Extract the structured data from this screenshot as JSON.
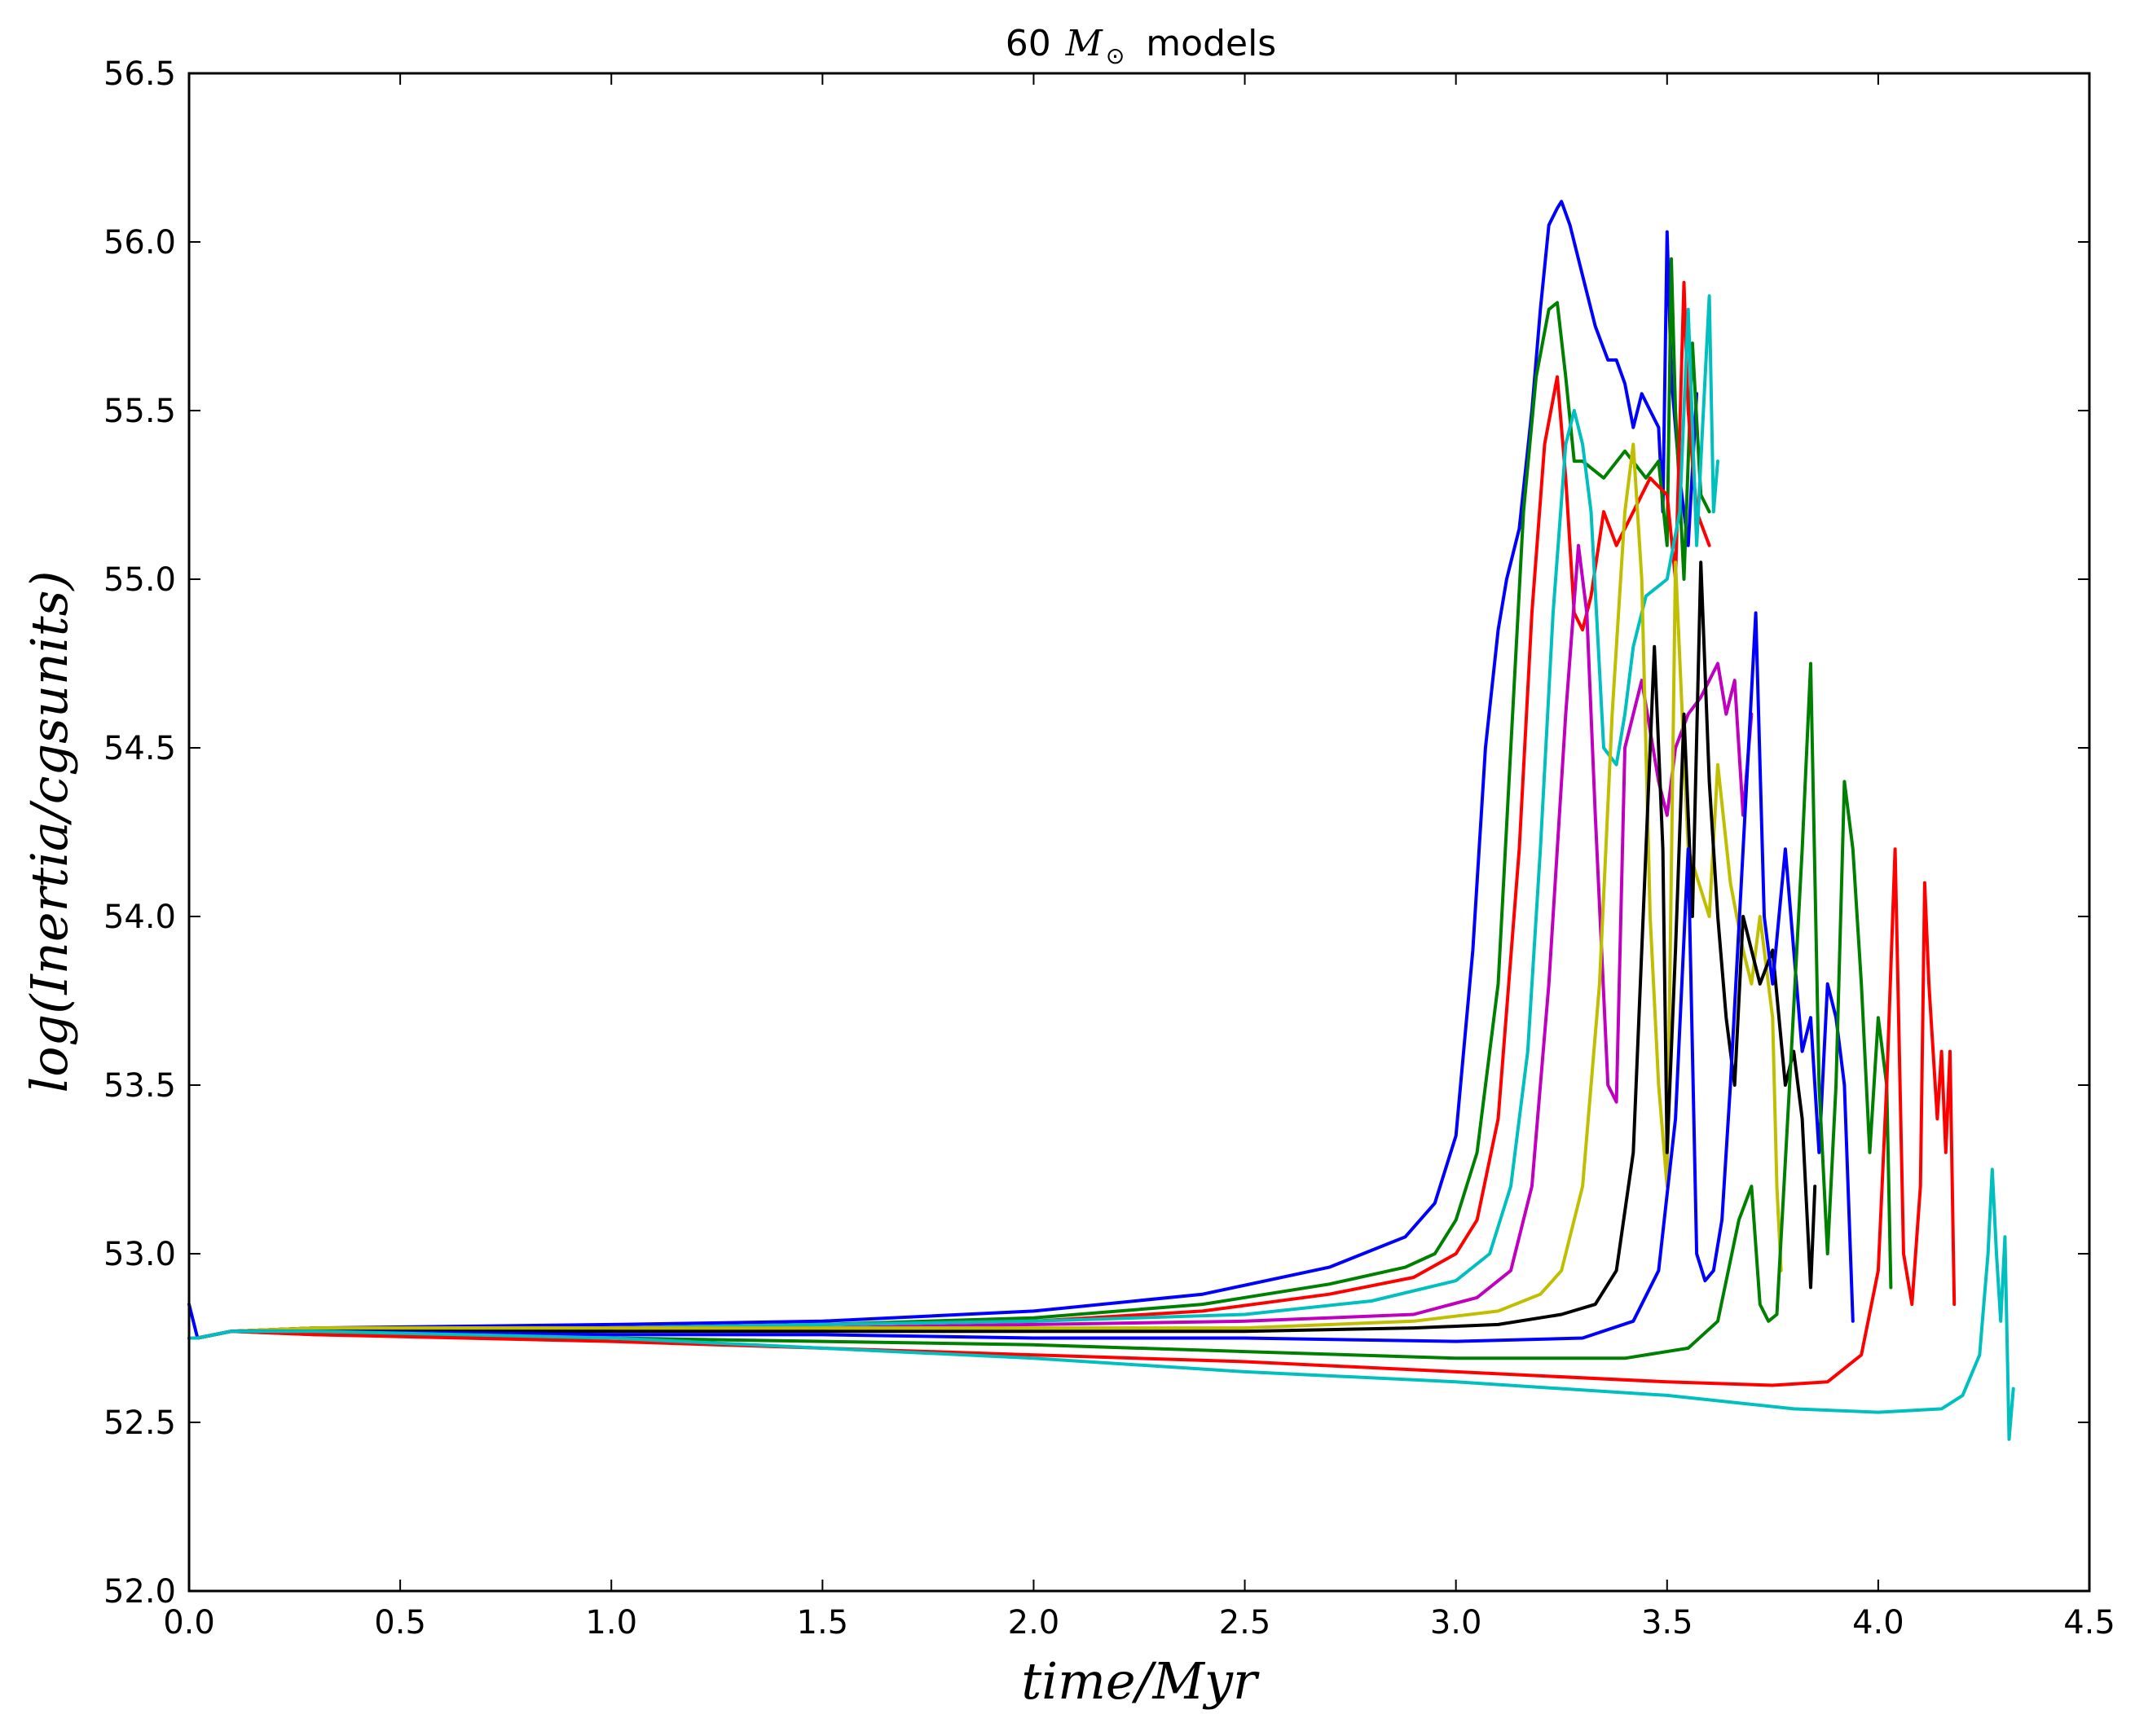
{
  "chart_data": {
    "type": "line",
    "title": "60 M⊙  models",
    "title_parts": {
      "prefix": "60",
      "mass_symbol": "M",
      "sun_symbol": "⊙",
      "suffix": "models"
    },
    "xlabel": "time/Myr",
    "ylabel": "log(Inertia/cgsunits)",
    "xlim": [
      0.0,
      4.5
    ],
    "ylim": [
      52.0,
      56.5
    ],
    "x_ticks": [
      "0.0",
      "0.5",
      "1.0",
      "1.5",
      "2.0",
      "2.5",
      "3.0",
      "3.5",
      "4.0",
      "4.5"
    ],
    "y_ticks": [
      "52.0",
      "52.5",
      "53.0",
      "53.5",
      "54.0",
      "54.5",
      "55.0",
      "55.5",
      "56.0",
      "56.5"
    ],
    "grid": false,
    "legend": "none",
    "series": [
      {
        "color": "#0000ff",
        "x": [
          0.0,
          0.02,
          0.1,
          0.3,
          1.0,
          1.5,
          2.0,
          2.4,
          2.7,
          2.88,
          2.95,
          3.0,
          3.04,
          3.07,
          3.1,
          3.12,
          3.15,
          3.18,
          3.2,
          3.22,
          3.24,
          3.25,
          3.27,
          3.3,
          3.33,
          3.36,
          3.38,
          3.4,
          3.42,
          3.44,
          3.46,
          3.48,
          3.49,
          3.5,
          3.51,
          3.53,
          3.55,
          3.57
        ],
        "y": [
          52.85,
          52.75,
          52.77,
          52.78,
          52.79,
          52.8,
          52.83,
          52.88,
          52.96,
          53.05,
          53.15,
          53.35,
          53.9,
          54.5,
          54.85,
          55.0,
          55.15,
          55.5,
          55.8,
          56.05,
          56.1,
          56.12,
          56.05,
          55.9,
          55.75,
          55.65,
          55.65,
          55.58,
          55.45,
          55.55,
          55.5,
          55.45,
          55.2,
          56.03,
          55.6,
          55.3,
          55.1,
          55.55
        ]
      },
      {
        "color": "#008000",
        "x": [
          0.0,
          0.02,
          0.1,
          0.3,
          1.0,
          1.5,
          2.0,
          2.4,
          2.7,
          2.88,
          2.95,
          3.0,
          3.05,
          3.1,
          3.13,
          3.16,
          3.19,
          3.22,
          3.24,
          3.26,
          3.28,
          3.3,
          3.35,
          3.4,
          3.45,
          3.48,
          3.5,
          3.51,
          3.52,
          3.54,
          3.56,
          3.58,
          3.6
        ],
        "y": [
          52.75,
          52.75,
          52.77,
          52.78,
          52.78,
          52.79,
          52.81,
          52.85,
          52.91,
          52.96,
          53.0,
          53.1,
          53.3,
          53.8,
          54.5,
          55.2,
          55.6,
          55.8,
          55.82,
          55.6,
          55.35,
          55.35,
          55.3,
          55.38,
          55.3,
          55.35,
          55.1,
          55.95,
          55.5,
          55.0,
          55.7,
          55.25,
          55.2
        ]
      },
      {
        "color": "#ff0000",
        "x": [
          0.0,
          0.02,
          0.1,
          0.3,
          1.0,
          1.5,
          2.0,
          2.4,
          2.7,
          2.9,
          3.0,
          3.05,
          3.1,
          3.15,
          3.18,
          3.21,
          3.24,
          3.26,
          3.28,
          3.3,
          3.32,
          3.35,
          3.38,
          3.42,
          3.46,
          3.5,
          3.52,
          3.54,
          3.55,
          3.57,
          3.6
        ],
        "y": [
          52.75,
          52.75,
          52.77,
          52.78,
          52.78,
          52.79,
          52.8,
          52.83,
          52.88,
          52.93,
          53.0,
          53.1,
          53.4,
          54.2,
          54.9,
          55.4,
          55.6,
          55.3,
          54.9,
          54.85,
          54.95,
          55.2,
          55.1,
          55.2,
          55.3,
          55.25,
          55.0,
          55.88,
          55.5,
          55.2,
          55.1
        ]
      },
      {
        "color": "#00bfbf",
        "x": [
          0.0,
          0.02,
          0.1,
          0.3,
          1.0,
          1.5,
          2.0,
          2.5,
          2.8,
          3.0,
          3.08,
          3.13,
          3.17,
          3.2,
          3.23,
          3.26,
          3.28,
          3.3,
          3.32,
          3.35,
          3.38,
          3.4,
          3.42,
          3.45,
          3.5,
          3.53,
          3.55,
          3.57,
          3.58,
          3.6,
          3.61,
          3.62
        ],
        "y": [
          52.75,
          52.75,
          52.77,
          52.78,
          52.78,
          52.79,
          52.8,
          52.82,
          52.86,
          52.92,
          53.0,
          53.2,
          53.6,
          54.2,
          54.9,
          55.4,
          55.5,
          55.4,
          55.2,
          54.5,
          54.45,
          54.6,
          54.8,
          54.95,
          55.0,
          55.2,
          55.8,
          55.1,
          55.35,
          55.84,
          55.2,
          55.35
        ]
      },
      {
        "color": "#bf00bf",
        "x": [
          0.0,
          0.02,
          0.1,
          0.3,
          1.0,
          1.5,
          2.0,
          2.5,
          2.9,
          3.05,
          3.13,
          3.18,
          3.22,
          3.26,
          3.29,
          3.31,
          3.33,
          3.36,
          3.38,
          3.4,
          3.44,
          3.48,
          3.5,
          3.52,
          3.55,
          3.58,
          3.6,
          3.62,
          3.64,
          3.66,
          3.68,
          3.7
        ],
        "y": [
          52.75,
          52.75,
          52.77,
          52.78,
          52.78,
          52.78,
          52.79,
          52.8,
          52.82,
          52.87,
          52.95,
          53.2,
          53.8,
          54.6,
          55.1,
          54.9,
          54.3,
          53.5,
          53.45,
          54.5,
          54.7,
          54.4,
          54.3,
          54.5,
          54.6,
          54.65,
          54.7,
          54.75,
          54.6,
          54.7,
          54.3,
          54.6
        ]
      },
      {
        "color": "#bfbf00",
        "x": [
          0.0,
          0.02,
          0.1,
          0.3,
          1.0,
          1.5,
          2.0,
          2.5,
          2.9,
          3.1,
          3.2,
          3.25,
          3.3,
          3.34,
          3.37,
          3.4,
          3.42,
          3.44,
          3.46,
          3.48,
          3.5,
          3.52,
          3.55,
          3.6,
          3.62,
          3.65,
          3.68,
          3.7,
          3.72,
          3.75,
          3.76,
          3.77
        ],
        "y": [
          52.75,
          52.75,
          52.77,
          52.78,
          52.78,
          52.78,
          52.78,
          52.78,
          52.8,
          52.83,
          52.88,
          52.95,
          53.2,
          53.8,
          54.6,
          55.2,
          55.4,
          55.0,
          54.0,
          53.5,
          53.2,
          55.05,
          54.2,
          54.0,
          54.45,
          54.1,
          53.9,
          53.8,
          54.0,
          53.7,
          53.2,
          52.95
        ]
      },
      {
        "color": "#000000",
        "x": [
          0.0,
          0.02,
          0.1,
          0.3,
          1.0,
          1.5,
          2.0,
          2.5,
          2.9,
          3.1,
          3.25,
          3.33,
          3.38,
          3.42,
          3.45,
          3.47,
          3.49,
          3.5,
          3.52,
          3.54,
          3.56,
          3.58,
          3.6,
          3.62,
          3.64,
          3.66,
          3.68,
          3.7,
          3.72,
          3.75,
          3.78,
          3.8,
          3.82,
          3.84,
          3.85
        ],
        "y": [
          52.75,
          52.75,
          52.77,
          52.77,
          52.77,
          52.77,
          52.77,
          52.77,
          52.78,
          52.79,
          52.82,
          52.85,
          52.95,
          53.3,
          54.2,
          54.8,
          54.2,
          53.3,
          53.9,
          54.6,
          54.0,
          55.05,
          54.4,
          54.0,
          53.7,
          53.5,
          54.0,
          53.9,
          53.8,
          53.9,
          53.5,
          53.6,
          53.4,
          52.9,
          53.2
        ]
      },
      {
        "color": "#0000ff",
        "x": [
          0.0,
          0.02,
          0.1,
          0.3,
          1.0,
          1.5,
          2.0,
          2.5,
          3.0,
          3.3,
          3.42,
          3.48,
          3.52,
          3.55,
          3.57,
          3.59,
          3.61,
          3.63,
          3.65,
          3.68,
          3.71,
          3.73,
          3.75,
          3.78,
          3.8,
          3.82,
          3.84,
          3.86,
          3.88,
          3.9,
          3.92,
          3.94
        ],
        "y": [
          52.75,
          52.75,
          52.77,
          52.77,
          52.76,
          52.76,
          52.75,
          52.75,
          52.74,
          52.75,
          52.8,
          52.95,
          53.4,
          54.2,
          53.0,
          52.92,
          52.95,
          53.1,
          53.5,
          54.2,
          54.9,
          54.0,
          53.8,
          54.2,
          53.9,
          53.6,
          53.7,
          53.3,
          53.8,
          53.7,
          53.5,
          52.8
        ]
      },
      {
        "color": "#008000",
        "x": [
          0.0,
          0.02,
          0.1,
          0.3,
          1.0,
          1.5,
          2.0,
          2.5,
          3.0,
          3.4,
          3.55,
          3.62,
          3.67,
          3.7,
          3.72,
          3.74,
          3.76,
          3.79,
          3.82,
          3.84,
          3.86,
          3.88,
          3.9,
          3.92,
          3.94,
          3.96,
          3.98,
          4.0,
          4.02,
          4.03
        ],
        "y": [
          52.75,
          52.75,
          52.77,
          52.76,
          52.75,
          52.74,
          52.73,
          52.71,
          52.69,
          52.69,
          52.72,
          52.8,
          53.1,
          53.2,
          52.85,
          52.8,
          52.82,
          53.5,
          54.2,
          54.75,
          53.5,
          53.0,
          53.5,
          54.4,
          54.2,
          53.8,
          53.3,
          53.7,
          53.5,
          52.9
        ]
      },
      {
        "color": "#ff0000",
        "x": [
          0.0,
          0.02,
          0.1,
          0.3,
          1.0,
          1.5,
          2.0,
          2.5,
          3.0,
          3.5,
          3.75,
          3.88,
          3.96,
          4.0,
          4.02,
          4.04,
          4.06,
          4.08,
          4.1,
          4.11,
          4.12,
          4.14,
          4.15,
          4.16,
          4.17,
          4.18
        ],
        "y": [
          52.75,
          52.75,
          52.77,
          52.76,
          52.74,
          52.72,
          52.7,
          52.68,
          52.65,
          52.62,
          52.61,
          52.62,
          52.7,
          52.95,
          53.5,
          54.2,
          53.0,
          52.85,
          53.2,
          54.1,
          53.8,
          53.4,
          53.6,
          53.3,
          53.6,
          52.85
        ]
      },
      {
        "color": "#00bfbf",
        "x": [
          0.0,
          0.02,
          0.1,
          0.3,
          1.0,
          1.5,
          2.0,
          2.5,
          3.0,
          3.5,
          3.8,
          4.0,
          4.15,
          4.2,
          4.24,
          4.26,
          4.27,
          4.28,
          4.29,
          4.3,
          4.31,
          4.32
        ],
        "y": [
          52.75,
          52.75,
          52.77,
          52.77,
          52.75,
          52.72,
          52.69,
          52.65,
          52.62,
          52.58,
          52.54,
          52.53,
          52.54,
          52.58,
          52.7,
          53.0,
          53.25,
          53.0,
          52.8,
          53.05,
          52.45,
          52.6
        ]
      }
    ]
  }
}
